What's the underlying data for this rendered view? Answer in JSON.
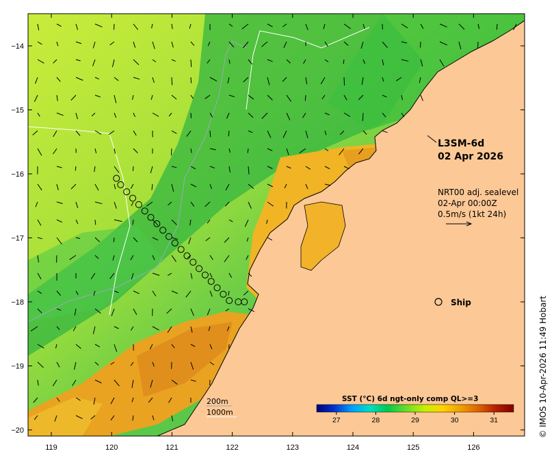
{
  "map": {
    "product_label": "L3SM-6d",
    "date_label": "02 Apr 2026",
    "current_source": "NRT00 adj. sealevel",
    "current_time": "02-Apr 00:00Z",
    "current_scale": "0.5m/s (1kt 24h)",
    "ship_label": "Ship",
    "isobath_labels": [
      "200m",
      "1000m"
    ],
    "credit": "© IMOS 10-Apr-2026 11:49 Hobart",
    "x_ticks": [
      "119",
      "120",
      "121",
      "122",
      "123",
      "124",
      "125",
      "126"
    ],
    "y_ticks": [
      "−14",
      "−15",
      "−16",
      "−17",
      "−18",
      "−19",
      "−20"
    ],
    "colors": {
      "land": "#fcc896",
      "sea_cool": "#bfe63a",
      "sea_mid": "#4cc84a",
      "sea_warm": "#f2aa1a",
      "track": "#000000"
    },
    "ship_track": [
      [
        120.08,
        -16.07
      ],
      [
        120.15,
        -16.17
      ],
      [
        120.25,
        -16.28
      ],
      [
        120.35,
        -16.38
      ],
      [
        120.45,
        -16.48
      ],
      [
        120.55,
        -16.58
      ],
      [
        120.65,
        -16.68
      ],
      [
        120.75,
        -16.78
      ],
      [
        120.85,
        -16.88
      ],
      [
        120.95,
        -16.98
      ],
      [
        121.05,
        -17.08
      ],
      [
        121.15,
        -17.18
      ],
      [
        121.25,
        -17.28
      ],
      [
        121.35,
        -17.38
      ],
      [
        121.45,
        -17.48
      ],
      [
        121.55,
        -17.58
      ],
      [
        121.65,
        -17.68
      ],
      [
        121.75,
        -17.78
      ],
      [
        121.85,
        -17.88
      ],
      [
        121.95,
        -17.98
      ],
      [
        122.1,
        -18.0
      ],
      [
        122.2,
        -18.0
      ]
    ],
    "colorbar": {
      "title": "SST (°C) 6d ngt-only comp QL>=3",
      "ticks": [
        "27",
        "28",
        "29",
        "30",
        "31"
      ],
      "min": 26.5,
      "max": 31.5,
      "stops": [
        "#00007f",
        "#0033cc",
        "#00a0ff",
        "#00dcc8",
        "#00c850",
        "#64dc28",
        "#c8f000",
        "#ffd200",
        "#f0a000",
        "#dc6400",
        "#b41e00",
        "#820000"
      ]
    }
  }
}
